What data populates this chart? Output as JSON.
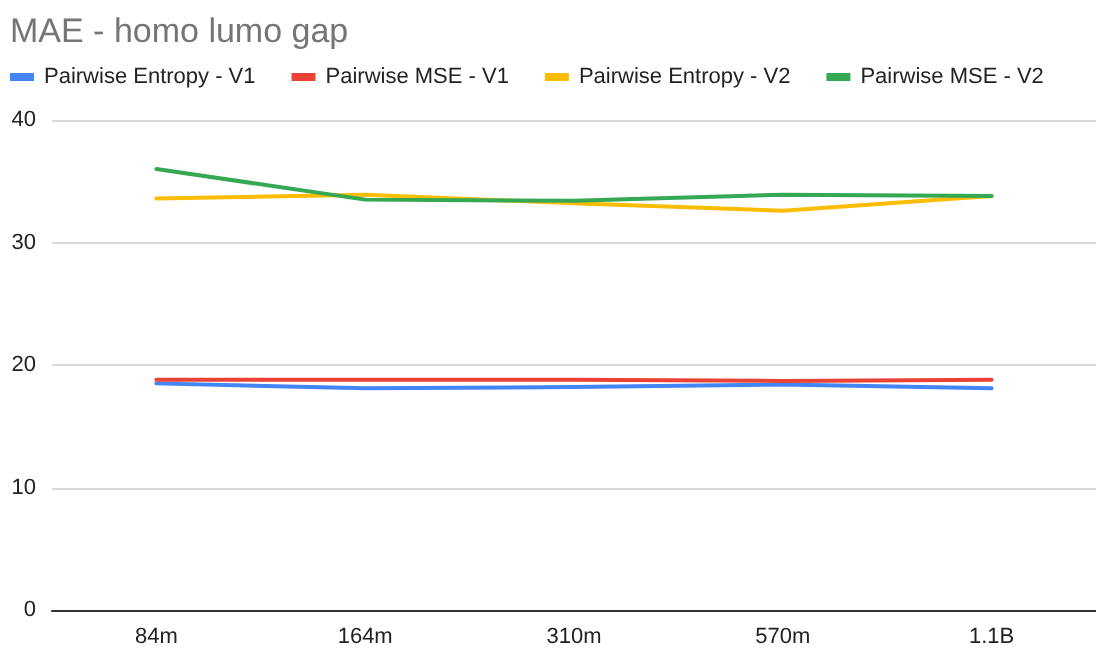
{
  "chart_data": {
    "type": "line",
    "title": "MAE - homo lumo gap",
    "categories": [
      "84m",
      "164m",
      "310m",
      "570m",
      "1.1B"
    ],
    "series": [
      {
        "name": "Pairwise Entropy - V1",
        "color": "#4285f4",
        "values": [
          18.5,
          18.1,
          18.2,
          18.4,
          18.1
        ]
      },
      {
        "name": "Pairwise MSE - V1",
        "color": "#ea4335",
        "values": [
          18.8,
          18.8,
          18.8,
          18.7,
          18.8
        ]
      },
      {
        "name": "Pairwise Entropy - V2",
        "color": "#fbbc04",
        "values": [
          33.6,
          33.9,
          33.2,
          32.6,
          33.8
        ]
      },
      {
        "name": "Pairwise MSE - V2",
        "color": "#34a853",
        "values": [
          36,
          33.5,
          33.4,
          33.9,
          33.8
        ]
      }
    ],
    "ylim": [
      0,
      40
    ],
    "yticks": [
      0,
      10,
      20,
      30,
      40
    ],
    "grid": "y",
    "legend": "top left",
    "marker": "none",
    "line_style": "solid"
  }
}
